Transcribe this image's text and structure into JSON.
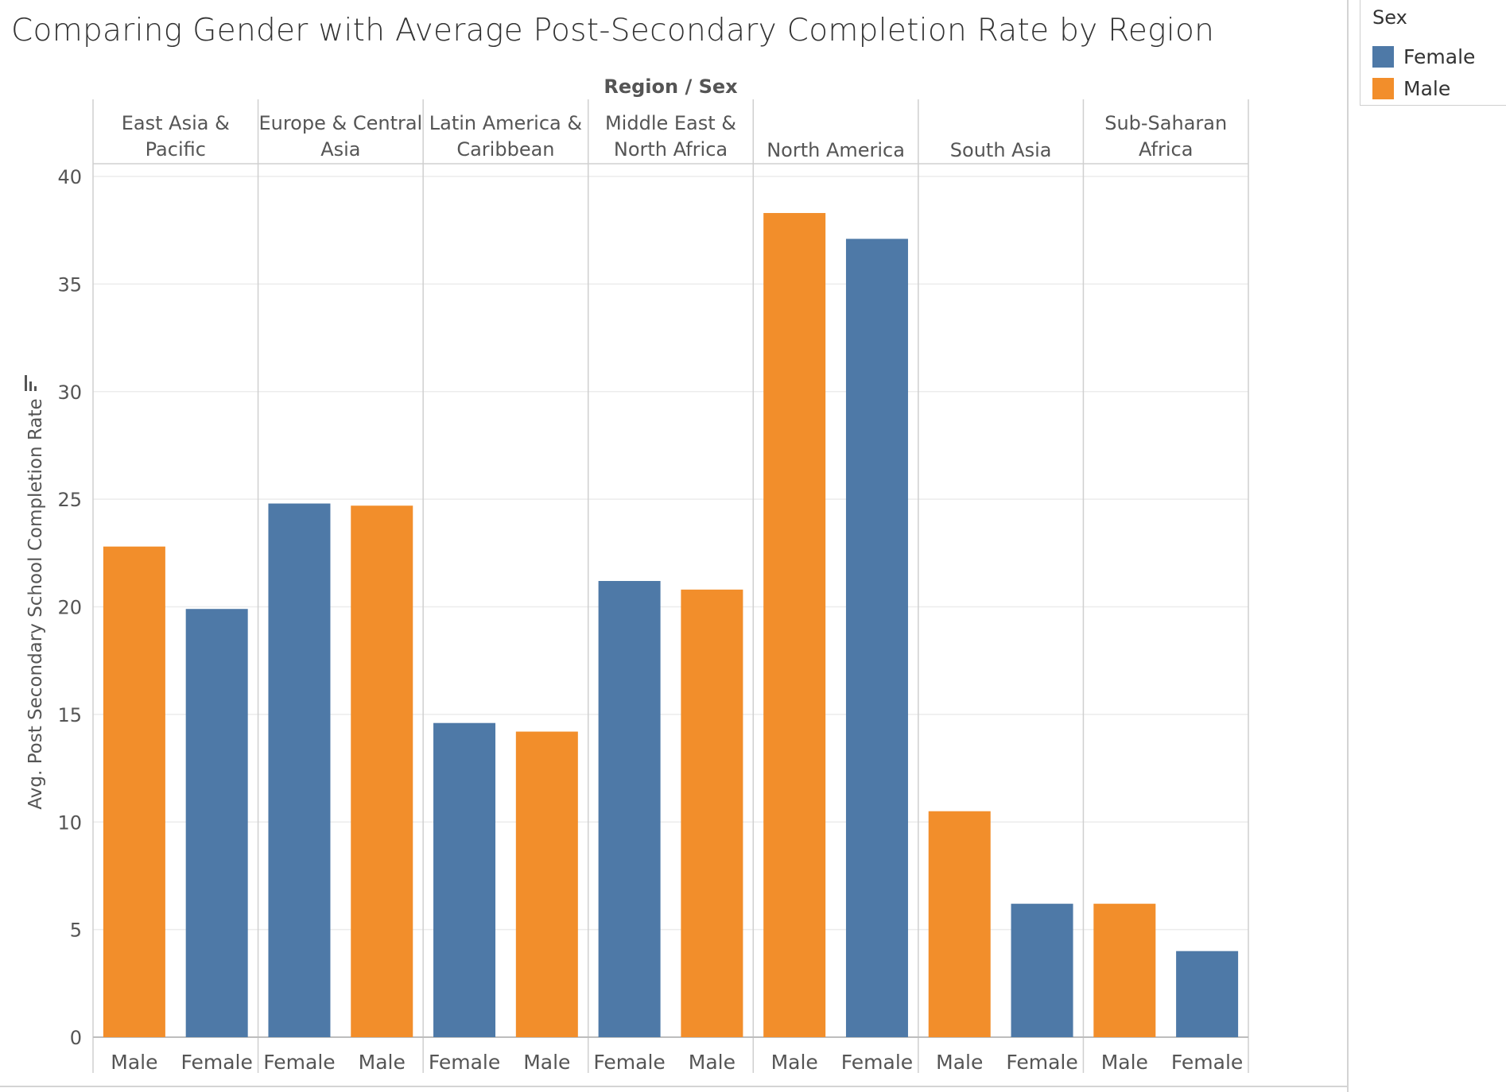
{
  "title": "Comparing Gender with Average Post-Secondary Completion Rate by Region",
  "legend": {
    "title": "Sex",
    "items": [
      {
        "label": "Female",
        "color": "#4e79a7"
      },
      {
        "label": "Male",
        "color": "#f28e2b"
      }
    ]
  },
  "chart_data": {
    "type": "bar",
    "column_header": "Region / Sex",
    "ylabel": "Avg. Post Secondary School Completion Rate",
    "ylim": [
      0,
      40
    ],
    "yticks": [
      0,
      5,
      10,
      15,
      20,
      25,
      30,
      35,
      40
    ],
    "grid": true,
    "colors": {
      "Female": "#4e79a7",
      "Male": "#f28e2b"
    },
    "regions": [
      {
        "name": "East Asia & Pacific",
        "label_lines": [
          "East Asia &",
          "Pacific"
        ],
        "bars": [
          {
            "sex": "Male",
            "value": 22.8
          },
          {
            "sex": "Female",
            "value": 19.9
          }
        ]
      },
      {
        "name": "Europe & Central Asia",
        "label_lines": [
          "Europe & Central",
          "Asia"
        ],
        "bars": [
          {
            "sex": "Female",
            "value": 24.8
          },
          {
            "sex": "Male",
            "value": 24.7
          }
        ]
      },
      {
        "name": "Latin America & Caribbean",
        "label_lines": [
          "Latin America &",
          "Caribbean"
        ],
        "bars": [
          {
            "sex": "Female",
            "value": 14.6
          },
          {
            "sex": "Male",
            "value": 14.2
          }
        ]
      },
      {
        "name": "Middle East & North Africa",
        "label_lines": [
          "Middle East &",
          "North Africa"
        ],
        "bars": [
          {
            "sex": "Female",
            "value": 21.2
          },
          {
            "sex": "Male",
            "value": 20.8
          }
        ]
      },
      {
        "name": "North America",
        "label_lines": [
          "North America"
        ],
        "bars": [
          {
            "sex": "Male",
            "value": 38.3
          },
          {
            "sex": "Female",
            "value": 37.1
          }
        ]
      },
      {
        "name": "South Asia",
        "label_lines": [
          "South Asia"
        ],
        "bars": [
          {
            "sex": "Male",
            "value": 10.5
          },
          {
            "sex": "Female",
            "value": 6.2
          }
        ]
      },
      {
        "name": "Sub-Saharan Africa",
        "label_lines": [
          "Sub-Saharan",
          "Africa"
        ],
        "bars": [
          {
            "sex": "Male",
            "value": 6.2
          },
          {
            "sex": "Female",
            "value": 4.0
          }
        ]
      }
    ]
  }
}
